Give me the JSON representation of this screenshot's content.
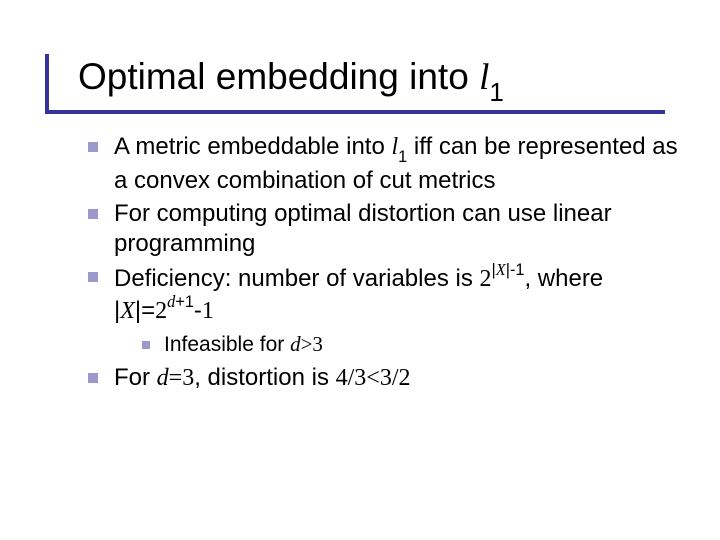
{
  "slide": {
    "title_html": "Optimal embedding into <span class='italic'>l</span><span class='sub'>1</span>",
    "accent_color": "#333399",
    "bullet_color": "#9999cb",
    "background": "#ffffff",
    "title_fontsize": 37,
    "body_fontsize_l1": 24,
    "body_fontsize_l2": 21,
    "bullets": [
      {
        "level": 1,
        "html": "A metric embeddable into <span class='it'>l</span><span class='ssub'>1</span> iff can be represented as a convex combination of cut metrics"
      },
      {
        "level": 1,
        "html": "For computing optimal distortion can use linear programming"
      },
      {
        "level": 1,
        "html": "Deficiency: number of variables is <span class='tnr'>2</span><span class='ssup'>|<span class='it'>X</span>|-1</span>, where |<span class='it'>X</span>|=<span class='tnr'>2</span><span class='ssup it'>d</span><span class='ssup'>+1</span>-<span class='tnr'>1</span>"
      },
      {
        "level": 2,
        "html": "Infeasible for <span class='it'>d</span><span class='tnr'>&gt;3</span>"
      },
      {
        "level": 1,
        "html": "For <span class='it'>d</span><span class='tnr'>=3</span>, distortion is <span class='tnr'>4/3&lt;3/2</span>"
      }
    ]
  }
}
